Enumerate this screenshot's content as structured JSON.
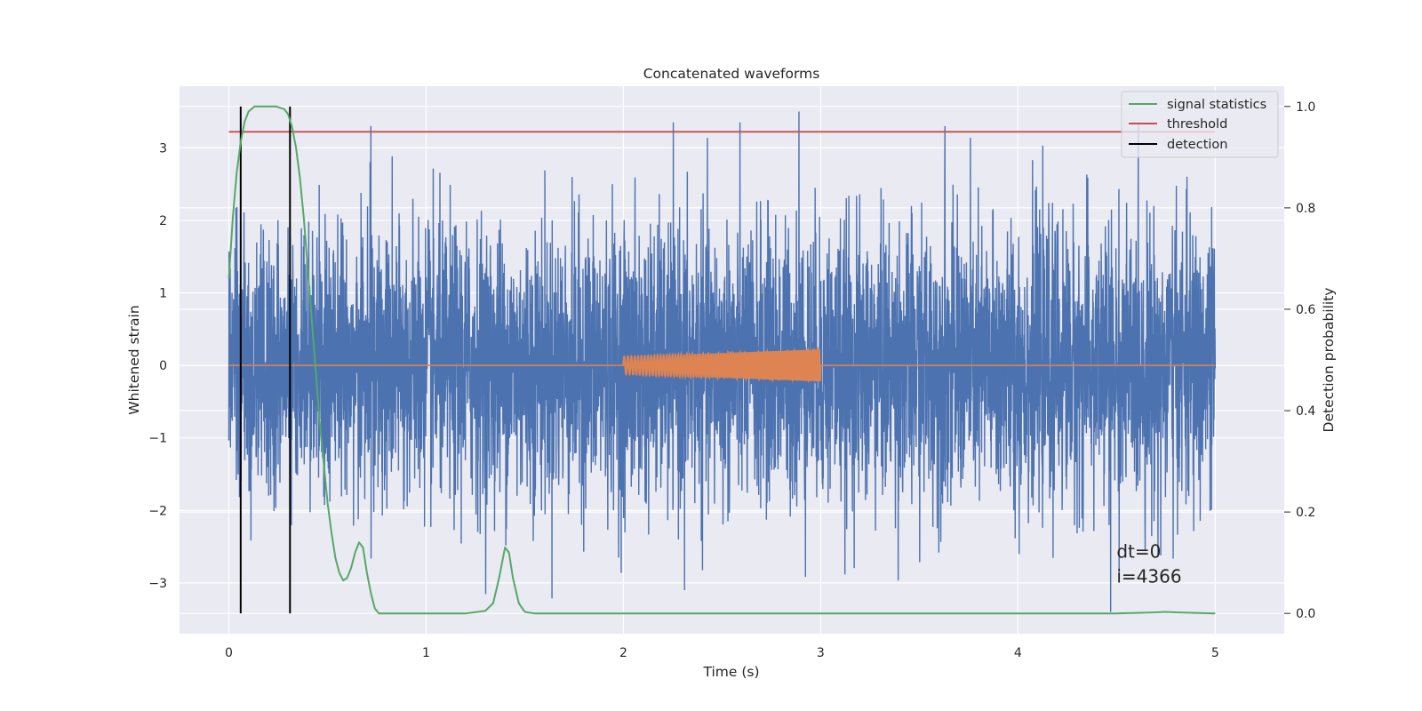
{
  "chart_data": {
    "type": "line",
    "title": "Concatenated waveforms",
    "xlabel": "Time (s)",
    "ylabel": "Whitened strain",
    "ylabel_right": "Detection probability",
    "xlim": [
      -0.25,
      5.35
    ],
    "ylim": [
      -3.7,
      3.85
    ],
    "ylim_right": [
      -0.04,
      1.04
    ],
    "xticks": [
      0,
      1,
      2,
      3,
      4,
      5
    ],
    "yticks": [
      -3,
      -2,
      -1,
      0,
      1,
      2,
      3
    ],
    "yticks_right": [
      0.0,
      0.2,
      0.4,
      0.6,
      0.8,
      1.0
    ],
    "xtick_labels": [
      "0",
      "1",
      "2",
      "3",
      "4",
      "5"
    ],
    "ytick_labels": [
      "−3",
      "−2",
      "−1",
      "0",
      "1",
      "2",
      "3"
    ],
    "ytick_labels_right": [
      "0.0",
      "0.2",
      "0.4",
      "0.6",
      "0.8",
      "1.0"
    ],
    "grid": true,
    "legend_position": "top-right",
    "colors": {
      "strain": "#4c72b0",
      "waveform": "#dd8452",
      "signal_statistics": "#55a868",
      "threshold": "#c44e52",
      "detection": "#000000",
      "background": "#eaeaf2"
    },
    "series": [
      {
        "name": "signal statistics",
        "axis": "right",
        "x": [
          0.0,
          0.02,
          0.04,
          0.06,
          0.08,
          0.1,
          0.13,
          0.16,
          0.2,
          0.24,
          0.28,
          0.3,
          0.32,
          0.34,
          0.36,
          0.38,
          0.4,
          0.42,
          0.44,
          0.46,
          0.48,
          0.5,
          0.52,
          0.54,
          0.56,
          0.58,
          0.6,
          0.62,
          0.64,
          0.66,
          0.68,
          0.7,
          0.72,
          0.74,
          0.76,
          0.8,
          1.0,
          1.2,
          1.3,
          1.34,
          1.37,
          1.4,
          1.42,
          1.44,
          1.47,
          1.5,
          1.55,
          2.0,
          3.0,
          4.0,
          4.5,
          4.7,
          4.75,
          4.8,
          5.0
        ],
        "y": [
          0.66,
          0.78,
          0.87,
          0.93,
          0.97,
          0.99,
          1.0,
          1.0,
          1.0,
          1.0,
          0.995,
          0.985,
          0.96,
          0.92,
          0.86,
          0.78,
          0.68,
          0.58,
          0.48,
          0.38,
          0.3,
          0.22,
          0.16,
          0.11,
          0.08,
          0.065,
          0.07,
          0.09,
          0.12,
          0.14,
          0.13,
          0.08,
          0.04,
          0.01,
          0.0,
          0.0,
          0.0,
          0.0,
          0.005,
          0.02,
          0.07,
          0.13,
          0.12,
          0.07,
          0.02,
          0.003,
          0.0,
          0.0,
          0.0,
          0.0,
          0.0,
          0.002,
          0.003,
          0.002,
          0.0
        ]
      },
      {
        "name": "threshold",
        "axis": "right",
        "x": [
          0.0,
          5.0
        ],
        "y": [
          0.95,
          0.95
        ]
      },
      {
        "name": "detection",
        "axis": "right",
        "x": [
          0.06,
          0.31
        ],
        "y_range": [
          0.0,
          1.0
        ]
      },
      {
        "name": "",
        "axis": "left",
        "description": "whitened strain noise, approx. gaussian, range about -3.2 to 3.5",
        "x_range": [
          0.0,
          5.0
        ],
        "sigma": 0.95,
        "notable_points": [
          {
            "x": 2.89,
            "y": 3.5
          },
          {
            "x": 2.31,
            "y": -3.1
          },
          {
            "x": 4.47,
            "y": -3.4
          },
          {
            "x": 3.63,
            "y": 3.3
          },
          {
            "x": 0.72,
            "y": 3.3
          }
        ]
      },
      {
        "name": "",
        "axis": "left",
        "description": "injected chirp waveform",
        "x_range": [
          2.0,
          3.0
        ],
        "amplitude_start": 0.12,
        "amplitude_end": 0.22
      }
    ],
    "annotation": {
      "lines": [
        "dt=0",
        "i=4366"
      ],
      "x": 4.5,
      "y": -2.65
    }
  }
}
